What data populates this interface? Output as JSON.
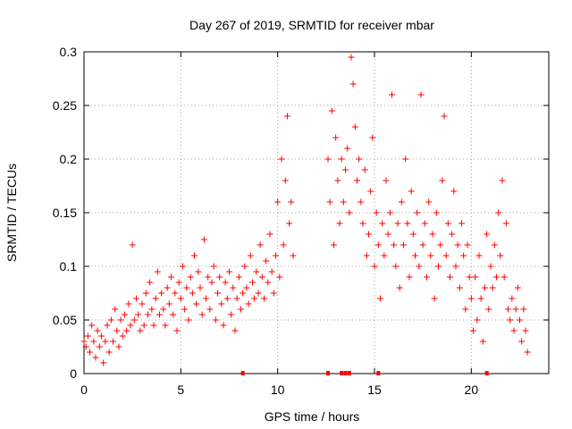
{
  "chart_data": {
    "type": "scatter",
    "title": "Day 267 of 2019, SRMTID for receiver mbar",
    "xlabel": "GPS time / hours",
    "ylabel": "SRMTID / TECUs",
    "xlim": [
      0,
      24
    ],
    "ylim": [
      0,
      0.3
    ],
    "x_ticks": [
      0,
      5,
      10,
      15,
      20
    ],
    "x_tick_labels": [
      "0",
      "5",
      "10",
      "15",
      "20"
    ],
    "y_ticks": [
      0,
      0.05,
      0.1,
      0.15,
      0.2,
      0.25,
      0.3
    ],
    "y_tick_labels": [
      "0",
      "0.05",
      "0.1",
      "0.15",
      "0.2",
      "0.25",
      "0.3"
    ],
    "grid": true,
    "marker": "plus",
    "color": "#ff0000",
    "series": [
      {
        "name": "SRMTID",
        "points": [
          [
            0.0,
            0.03
          ],
          [
            0.1,
            0.025
          ],
          [
            0.2,
            0.035
          ],
          [
            0.3,
            0.02
          ],
          [
            0.4,
            0.045
          ],
          [
            0.5,
            0.03
          ],
          [
            0.6,
            0.015
          ],
          [
            0.7,
            0.04
          ],
          [
            0.8,
            0.025
          ],
          [
            0.9,
            0.035
          ],
          [
            1.0,
            0.01
          ],
          [
            1.1,
            0.03
          ],
          [
            1.2,
            0.045
          ],
          [
            1.3,
            0.02
          ],
          [
            1.4,
            0.05
          ],
          [
            1.5,
            0.03
          ],
          [
            1.6,
            0.06
          ],
          [
            1.7,
            0.04
          ],
          [
            1.8,
            0.025
          ],
          [
            1.9,
            0.05
          ],
          [
            2.0,
            0.035
          ],
          [
            2.1,
            0.055
          ],
          [
            2.2,
            0.04
          ],
          [
            2.3,
            0.065
          ],
          [
            2.4,
            0.045
          ],
          [
            2.5,
            0.12
          ],
          [
            2.6,
            0.05
          ],
          [
            2.7,
            0.07
          ],
          [
            2.8,
            0.055
          ],
          [
            2.9,
            0.04
          ],
          [
            3.0,
            0.065
          ],
          [
            3.1,
            0.045
          ],
          [
            3.2,
            0.075
          ],
          [
            3.3,
            0.055
          ],
          [
            3.4,
            0.085
          ],
          [
            3.5,
            0.06
          ],
          [
            3.6,
            0.045
          ],
          [
            3.7,
            0.07
          ],
          [
            3.8,
            0.095
          ],
          [
            3.9,
            0.055
          ],
          [
            4.0,
            0.075
          ],
          [
            4.1,
            0.06
          ],
          [
            4.2,
            0.045
          ],
          [
            4.3,
            0.08
          ],
          [
            4.4,
            0.065
          ],
          [
            4.5,
            0.09
          ],
          [
            4.6,
            0.055
          ],
          [
            4.7,
            0.075
          ],
          [
            4.8,
            0.04
          ],
          [
            4.9,
            0.085
          ],
          [
            5.0,
            0.07
          ],
          [
            5.1,
            0.1
          ],
          [
            5.2,
            0.06
          ],
          [
            5.3,
            0.08
          ],
          [
            5.4,
            0.05
          ],
          [
            5.5,
            0.09
          ],
          [
            5.6,
            0.075
          ],
          [
            5.7,
            0.11
          ],
          [
            5.8,
            0.065
          ],
          [
            5.9,
            0.095
          ],
          [
            6.0,
            0.08
          ],
          [
            6.1,
            0.055
          ],
          [
            6.2,
            0.125
          ],
          [
            6.3,
            0.07
          ],
          [
            6.4,
            0.09
          ],
          [
            6.5,
            0.06
          ],
          [
            6.6,
            0.085
          ],
          [
            6.7,
            0.1
          ],
          [
            6.8,
            0.05
          ],
          [
            6.9,
            0.075
          ],
          [
            7.0,
            0.09
          ],
          [
            7.1,
            0.065
          ],
          [
            7.2,
            0.045
          ],
          [
            7.3,
            0.085
          ],
          [
            7.4,
            0.07
          ],
          [
            7.5,
            0.095
          ],
          [
            7.6,
            0.055
          ],
          [
            7.7,
            0.08
          ],
          [
            7.8,
            0.04
          ],
          [
            7.9,
            0.07
          ],
          [
            8.0,
            0.09
          ],
          [
            8.1,
            0.06
          ],
          [
            8.2,
            0.075
          ],
          [
            8.3,
            0.1
          ],
          [
            8.4,
            0.08
          ],
          [
            8.5,
            0.065
          ],
          [
            8.6,
            0.11
          ],
          [
            8.7,
            0.085
          ],
          [
            8.8,
            0.07
          ],
          [
            8.9,
            0.095
          ],
          [
            9.0,
            0.075
          ],
          [
            9.1,
            0.12
          ],
          [
            9.2,
            0.09
          ],
          [
            9.3,
            0.07
          ],
          [
            9.4,
            0.105
          ],
          [
            9.5,
            0.085
          ],
          [
            9.6,
            0.13
          ],
          [
            9.7,
            0.095
          ],
          [
            9.8,
            0.075
          ],
          [
            9.9,
            0.11
          ],
          [
            10.0,
            0.16
          ],
          [
            10.1,
            0.09
          ],
          [
            10.2,
            0.2
          ],
          [
            10.3,
            0.12
          ],
          [
            10.4,
            0.18
          ],
          [
            10.5,
            0.24
          ],
          [
            10.6,
            0.14
          ],
          [
            10.7,
            0.16
          ],
          [
            10.8,
            0.11
          ],
          [
            12.6,
            0.2
          ],
          [
            12.7,
            0.16
          ],
          [
            12.8,
            0.245
          ],
          [
            12.9,
            0.12
          ],
          [
            13.0,
            0.22
          ],
          [
            13.1,
            0.18
          ],
          [
            13.2,
            0.14
          ],
          [
            13.3,
            0.2
          ],
          [
            13.4,
            0.16
          ],
          [
            13.5,
            0.19
          ],
          [
            13.6,
            0.21
          ],
          [
            13.7,
            0.15
          ],
          [
            13.8,
            0.295
          ],
          [
            13.9,
            0.27
          ],
          [
            14.0,
            0.23
          ],
          [
            14.1,
            0.18
          ],
          [
            14.2,
            0.2
          ],
          [
            14.3,
            0.16
          ],
          [
            14.4,
            0.14
          ],
          [
            14.5,
            0.19
          ],
          [
            14.6,
            0.11
          ],
          [
            14.7,
            0.13
          ],
          [
            14.8,
            0.17
          ],
          [
            14.9,
            0.22
          ],
          [
            15.0,
            0.1
          ],
          [
            15.1,
            0.15
          ],
          [
            15.2,
            0.12
          ],
          [
            15.3,
            0.07
          ],
          [
            15.4,
            0.14
          ],
          [
            15.5,
            0.11
          ],
          [
            15.6,
            0.18
          ],
          [
            15.7,
            0.13
          ],
          [
            15.8,
            0.15
          ],
          [
            15.9,
            0.26
          ],
          [
            16.0,
            0.12
          ],
          [
            16.1,
            0.1
          ],
          [
            16.2,
            0.14
          ],
          [
            16.3,
            0.08
          ],
          [
            16.4,
            0.16
          ],
          [
            16.5,
            0.12
          ],
          [
            16.6,
            0.2
          ],
          [
            16.7,
            0.14
          ],
          [
            16.8,
            0.09
          ],
          [
            16.9,
            0.17
          ],
          [
            17.0,
            0.13
          ],
          [
            17.1,
            0.11
          ],
          [
            17.2,
            0.15
          ],
          [
            17.3,
            0.1
          ],
          [
            17.4,
            0.26
          ],
          [
            17.5,
            0.12
          ],
          [
            17.6,
            0.14
          ],
          [
            17.7,
            0.09
          ],
          [
            17.8,
            0.16
          ],
          [
            17.9,
            0.11
          ],
          [
            18.0,
            0.13
          ],
          [
            18.1,
            0.07
          ],
          [
            18.2,
            0.15
          ],
          [
            18.3,
            0.1
          ],
          [
            18.4,
            0.12
          ],
          [
            18.5,
            0.18
          ],
          [
            18.6,
            0.24
          ],
          [
            18.7,
            0.11
          ],
          [
            18.8,
            0.14
          ],
          [
            18.9,
            0.09
          ],
          [
            19.0,
            0.13
          ],
          [
            19.1,
            0.17
          ],
          [
            19.2,
            0.1
          ],
          [
            19.3,
            0.12
          ],
          [
            19.4,
            0.08
          ],
          [
            19.5,
            0.14
          ],
          [
            19.6,
            0.11
          ],
          [
            19.7,
            0.06
          ],
          [
            19.8,
            0.12
          ],
          [
            19.9,
            0.09
          ],
          [
            20.0,
            0.07
          ],
          [
            20.1,
            0.04
          ],
          [
            20.2,
            0.09
          ],
          [
            20.3,
            0.05
          ],
          [
            20.4,
            0.11
          ],
          [
            20.5,
            0.07
          ],
          [
            20.6,
            0.03
          ],
          [
            20.7,
            0.08
          ],
          [
            20.8,
            0.13
          ],
          [
            20.9,
            0.06
          ],
          [
            21.0,
            0.1
          ],
          [
            21.1,
            0.08
          ],
          [
            21.2,
            0.12
          ],
          [
            21.3,
            0.09
          ],
          [
            21.4,
            0.15
          ],
          [
            21.5,
            0.11
          ],
          [
            21.6,
            0.18
          ],
          [
            21.7,
            0.09
          ],
          [
            21.8,
            0.14
          ],
          [
            21.9,
            0.06
          ],
          [
            22.0,
            0.05
          ],
          [
            22.1,
            0.07
          ],
          [
            22.2,
            0.04
          ],
          [
            22.3,
            0.06
          ],
          [
            22.4,
            0.08
          ],
          [
            22.5,
            0.05
          ],
          [
            22.6,
            0.03
          ],
          [
            22.7,
            0.06
          ],
          [
            22.8,
            0.04
          ],
          [
            22.9,
            0.02
          ]
        ]
      }
    ],
    "gap_markers_x": [
      8.2,
      12.6,
      13.3,
      13.5,
      13.7,
      15.2,
      20.8
    ]
  }
}
